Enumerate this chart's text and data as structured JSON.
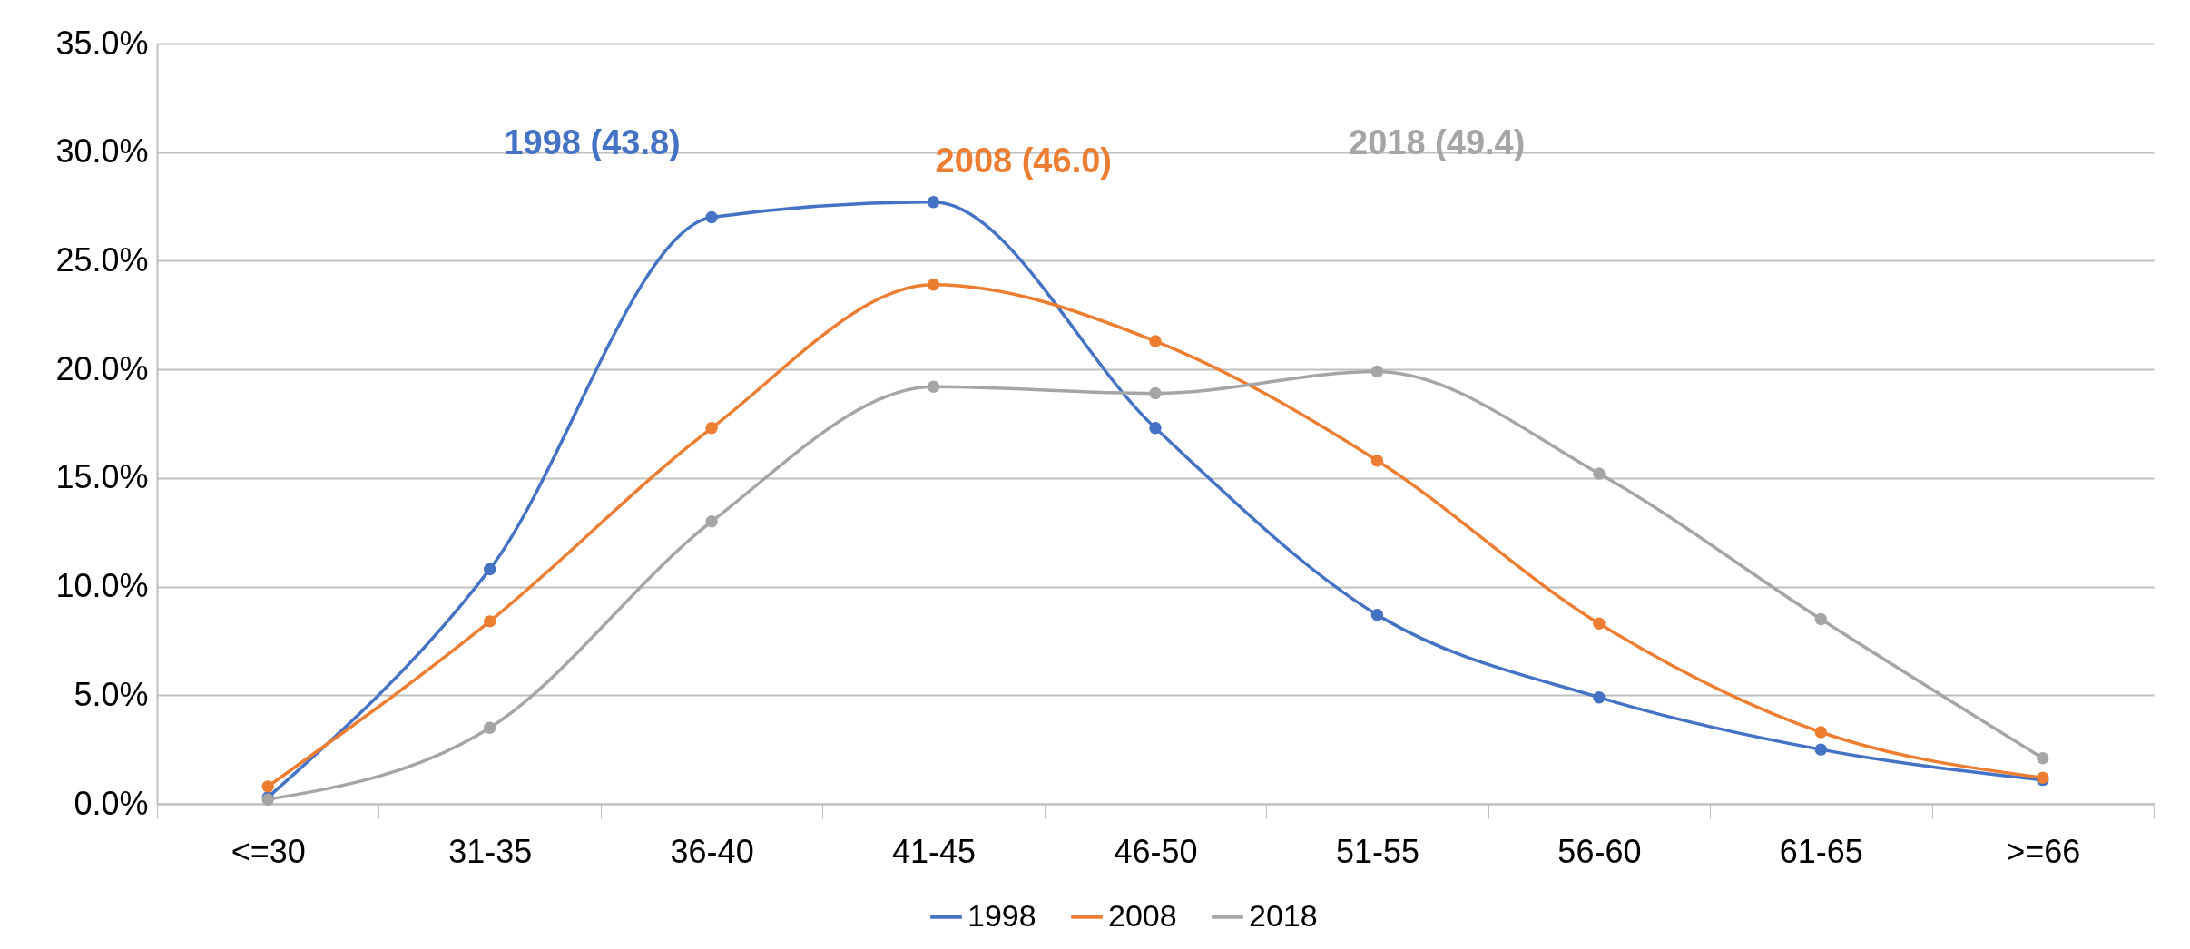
{
  "chart_data": {
    "type": "line",
    "categories": [
      "<=30",
      "31-35",
      "36-40",
      "41-45",
      "46-50",
      "51-55",
      "56-60",
      "61-65",
      ">=66"
    ],
    "series": [
      {
        "name": "1998",
        "color": "#4472c4",
        "values": [
          0.3,
          10.8,
          27.0,
          27.7,
          17.3,
          8.7,
          4.9,
          2.5,
          1.1
        ]
      },
      {
        "name": "2008",
        "color": "#ed7d31",
        "values": [
          0.8,
          8.4,
          17.3,
          23.9,
          21.3,
          15.8,
          8.3,
          3.3,
          1.2
        ]
      },
      {
        "name": "2018",
        "color": "#a5a5a5",
        "values": [
          0.2,
          3.5,
          13.0,
          19.2,
          18.9,
          19.9,
          15.2,
          8.5,
          2.1
        ]
      }
    ],
    "annotations": [
      "1998 (43.8)",
      "2008 (46.0)",
      "2018 (49.4)"
    ],
    "ylim": [
      0,
      35
    ],
    "yticks": [
      {
        "value": 0,
        "label": "0.0%"
      },
      {
        "value": 5,
        "label": "5.0%"
      },
      {
        "value": 10,
        "label": "10.0%"
      },
      {
        "value": 15,
        "label": "15.0%"
      },
      {
        "value": 20,
        "label": "20.0%"
      },
      {
        "value": 25,
        "label": "25.0%"
      },
      {
        "value": 30,
        "label": "30.0%"
      },
      {
        "value": 35,
        "label": "35.0%"
      }
    ],
    "grid": "y",
    "legend": "bottom",
    "marker": "circle",
    "line_style": "solid"
  }
}
